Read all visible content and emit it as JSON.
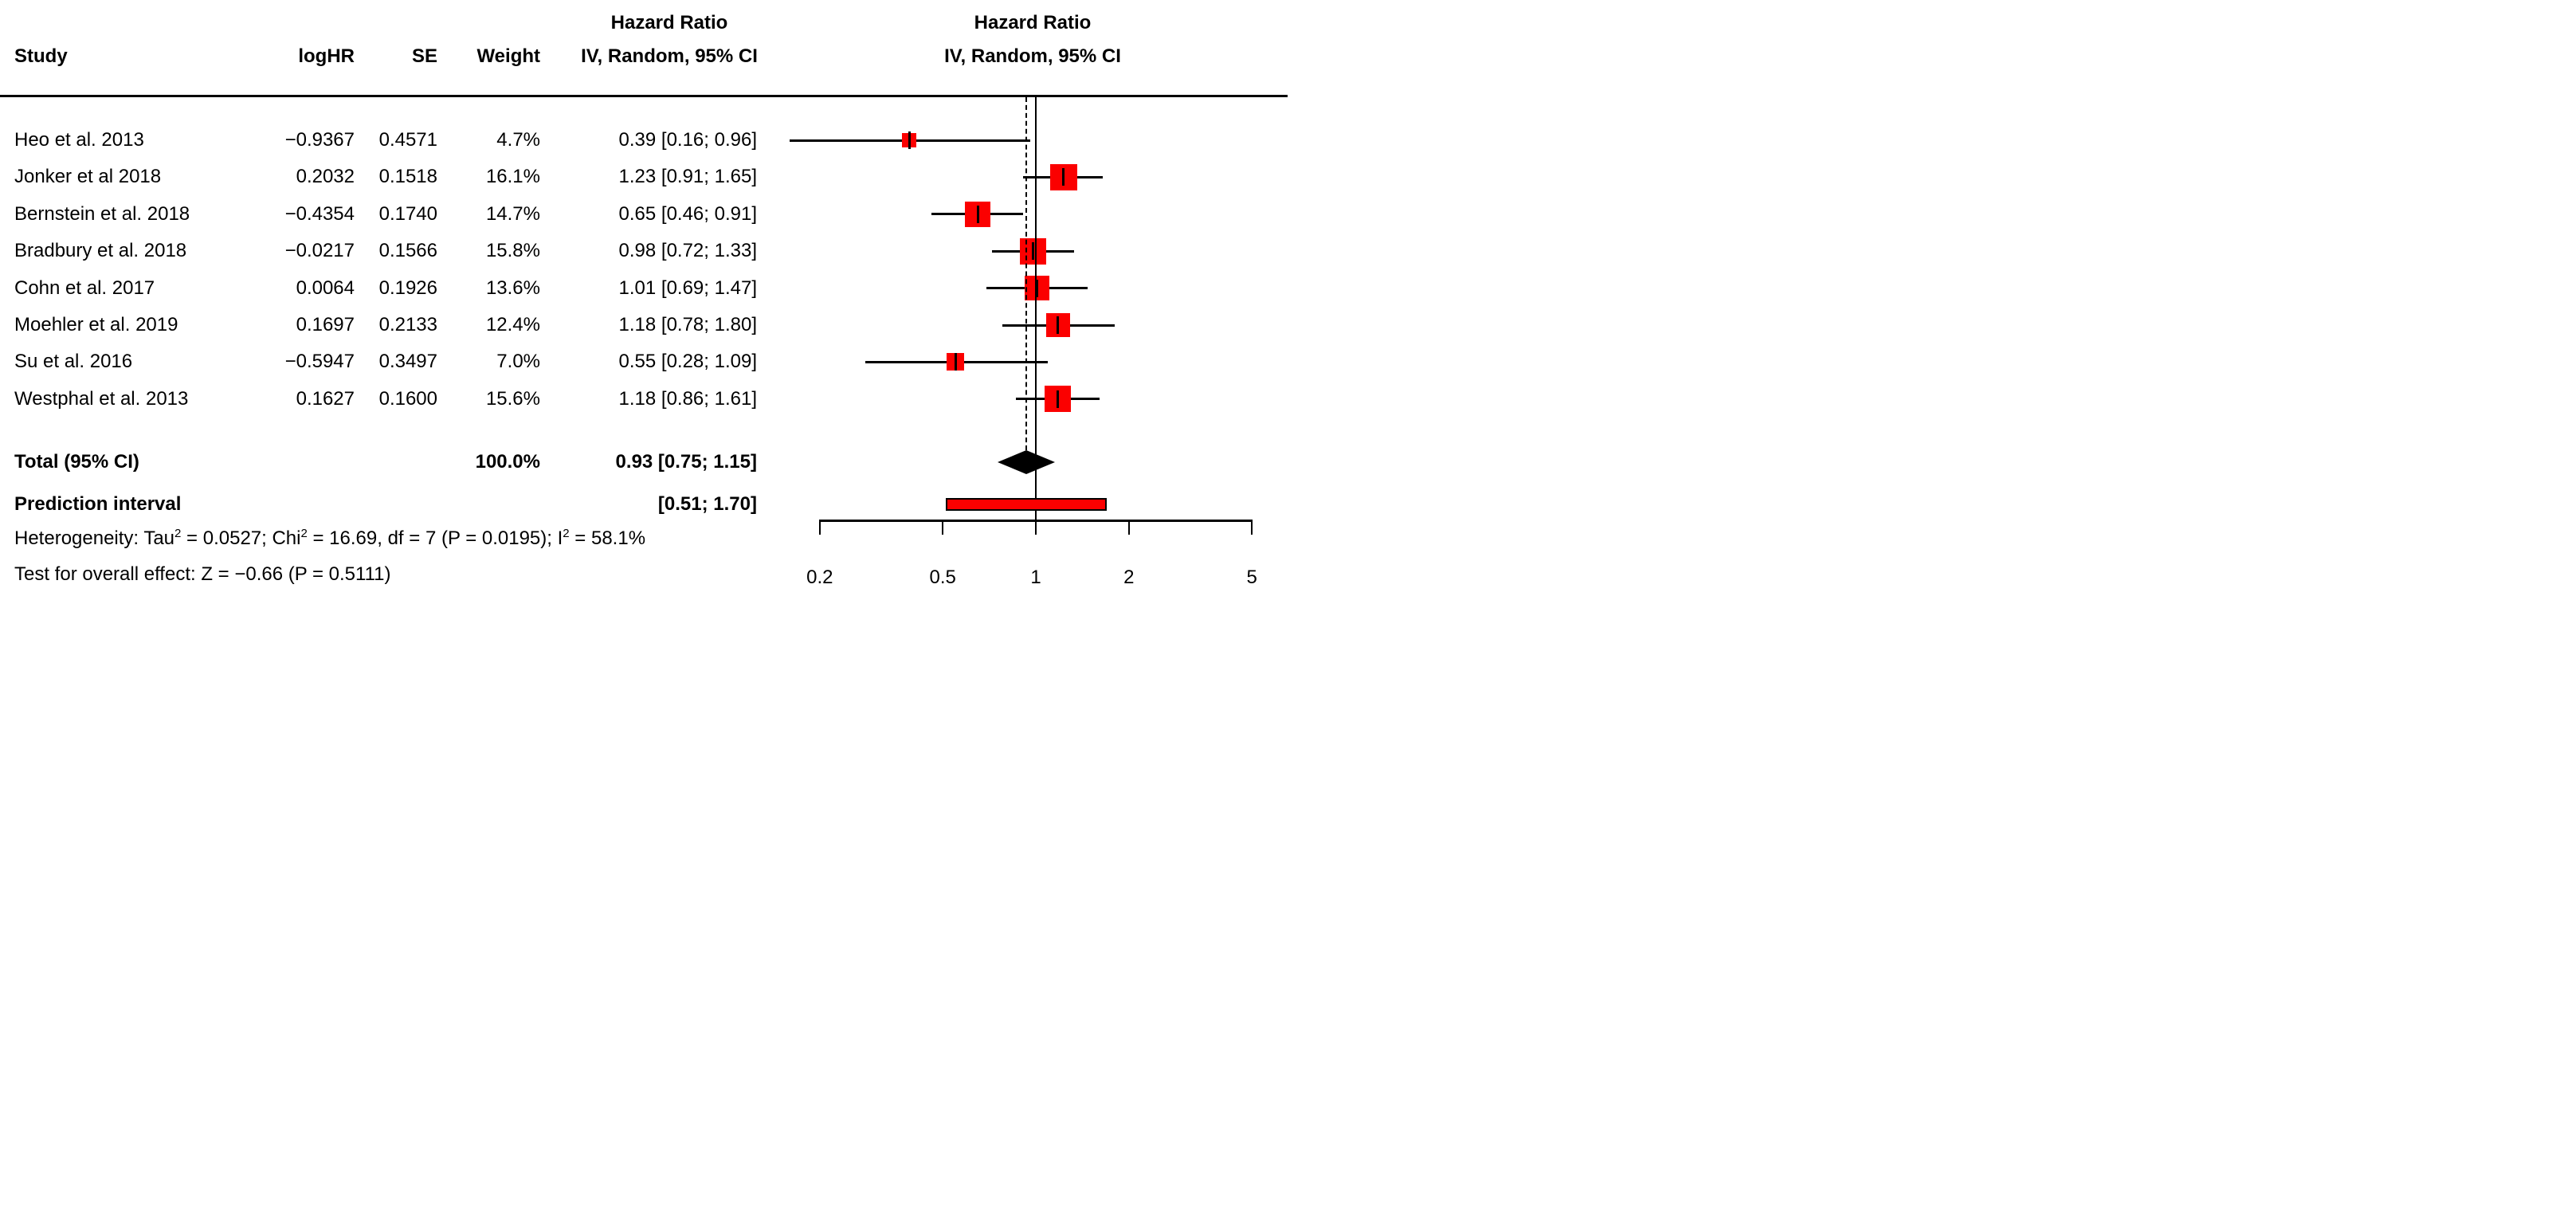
{
  "header": {
    "col_study": "Study",
    "col_loghr": "logHR",
    "col_se": "SE",
    "col_weight": "Weight",
    "hr_title_left": "Hazard Ratio",
    "hr_subtitle_left": "IV, Random, 95% CI",
    "hr_title_right": "Hazard Ratio",
    "hr_subtitle_right": "IV, Random, 95% CI"
  },
  "colors": {
    "marker_red": "#FB0000",
    "ink_black": "#000000",
    "background": "#FFFFFF"
  },
  "chart_data": {
    "type": "forest",
    "x_scale": "log",
    "x_ticks": [
      0.2,
      0.5,
      1,
      2,
      5
    ],
    "x_tick_labels": [
      "0.2",
      "0.5",
      "1",
      "2",
      "5"
    ],
    "ref_line": 1,
    "pooled_dashed_line": 0.93,
    "effect_measure": "Hazard Ratio",
    "model": "IV, Random, 95% CI",
    "studies": [
      {
        "study": "Heo et al. 2013",
        "logHR": "−0.9367",
        "SE": "0.4571",
        "weight_label": "4.7%",
        "weight_pct": 4.7,
        "hr": 0.39,
        "ci_low": 0.16,
        "ci_high": 0.96,
        "ci_label": "0.39 [0.16; 0.96]"
      },
      {
        "study": "Jonker et al 2018",
        "logHR": "0.2032",
        "SE": "0.1518",
        "weight_label": "16.1%",
        "weight_pct": 16.1,
        "hr": 1.23,
        "ci_low": 0.91,
        "ci_high": 1.65,
        "ci_label": "1.23 [0.91; 1.65]"
      },
      {
        "study": "Bernstein et al. 2018",
        "logHR": "−0.4354",
        "SE": "0.1740",
        "weight_label": "14.7%",
        "weight_pct": 14.7,
        "hr": 0.65,
        "ci_low": 0.46,
        "ci_high": 0.91,
        "ci_label": "0.65 [0.46; 0.91]"
      },
      {
        "study": "Bradbury et al. 2018",
        "logHR": "−0.0217",
        "SE": "0.1566",
        "weight_label": "15.8%",
        "weight_pct": 15.8,
        "hr": 0.98,
        "ci_low": 0.72,
        "ci_high": 1.33,
        "ci_label": "0.98 [0.72; 1.33]"
      },
      {
        "study": "Cohn et al. 2017",
        "logHR": "0.0064",
        "SE": "0.1926",
        "weight_label": "13.6%",
        "weight_pct": 13.6,
        "hr": 1.01,
        "ci_low": 0.69,
        "ci_high": 1.47,
        "ci_label": "1.01 [0.69; 1.47]"
      },
      {
        "study": "Moehler et al. 2019",
        "logHR": "0.1697",
        "SE": "0.2133",
        "weight_label": "12.4%",
        "weight_pct": 12.4,
        "hr": 1.18,
        "ci_low": 0.78,
        "ci_high": 1.8,
        "ci_label": "1.18 [0.78; 1.80]"
      },
      {
        "study": "Su et al. 2016",
        "logHR": "−0.5947",
        "SE": "0.3497",
        "weight_label": "7.0%",
        "weight_pct": 7.0,
        "hr": 0.55,
        "ci_low": 0.28,
        "ci_high": 1.09,
        "ci_label": "0.55 [0.28; 1.09]"
      },
      {
        "study": "Westphal et al. 2013",
        "logHR": "0.1627",
        "SE": "0.1600",
        "weight_label": "15.6%",
        "weight_pct": 15.6,
        "hr": 1.18,
        "ci_low": 0.86,
        "ci_high": 1.61,
        "ci_label": "1.18 [0.86; 1.61]"
      }
    ],
    "total": {
      "label": "Total (95% CI)",
      "weight_label": "100.0%",
      "hr": 0.93,
      "ci_low": 0.75,
      "ci_high": 1.15,
      "ci_label": "0.93 [0.75; 1.15]"
    },
    "prediction": {
      "label": "Prediction interval",
      "ci_low": 0.51,
      "ci_high": 1.7,
      "ci_label": "[0.51; 1.70]"
    },
    "heterogeneity_segments": [
      [
        "t",
        "Heterogeneity: Tau"
      ],
      [
        "s",
        "2"
      ],
      [
        "t",
        " = 0.0527; Chi"
      ],
      [
        "s",
        "2"
      ],
      [
        "t",
        " = 16.69, df = 7 (P = 0.0195); I"
      ],
      [
        "s",
        "2"
      ],
      [
        "t",
        " = 58.1%"
      ]
    ],
    "overall_effect_segments": [
      [
        "t",
        "Test for overall effect: Z = −0.66 (P = 0.5111)"
      ]
    ],
    "heterogeneity_text": "Heterogeneity: Tau2 = 0.0527; Chi2 = 16.69, df = 7 (P = 0.0195); I2 = 58.1%",
    "overall_effect_text": "Test for overall effect: Z = −0.66 (P = 0.5111)"
  }
}
